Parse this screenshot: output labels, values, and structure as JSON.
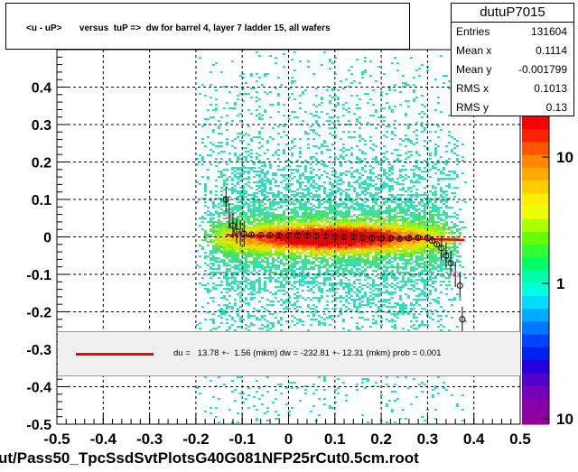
{
  "plot_title": "<u - uP>       versus  tuP =>  dw for barrel 4, layer 7 ladder 15, all wafers",
  "stats": {
    "name": "dutuP7015",
    "rows": [
      {
        "key": "Entries",
        "value": "131604"
      },
      {
        "key": "Mean x",
        "value": "0.1114"
      },
      {
        "key": "Mean y",
        "value": "-0.001799"
      },
      {
        "key": "RMS x",
        "value": "0.1013"
      },
      {
        "key": "RMS y",
        "value": "0.13"
      }
    ]
  },
  "fit_legend": "du =   13.78 +-  1.56 (mkm) dw = -232.81 +- 12.31 (mkm) prob = 0.001",
  "footer": "ut/Pass50_TpcSsdSvtPlotsG40G081NFP25rCut0.5cm.root",
  "colors": {
    "fit_line": "#ff0000",
    "profile_marker": "#000000",
    "profile_marker_alt": "#ff66ff"
  },
  "chart_data": {
    "type": "heatmap",
    "x_range": [
      -0.5,
      0.5
    ],
    "y_range": [
      -0.5,
      0.5
    ],
    "x_ticks": [
      -0.5,
      -0.4,
      -0.3,
      -0.2,
      -0.1,
      0,
      0.1,
      0.2,
      0.3,
      0.4,
      0.5
    ],
    "x_tick_labels": [
      "-0.5",
      "-0.4",
      "-0.3",
      "-0.2",
      "-0.1",
      "0",
      "0.1",
      "0.2",
      "0.3",
      "0.4",
      "0.5"
    ],
    "y_ticks": [
      -0.5,
      -0.4,
      -0.3,
      -0.2,
      -0.1,
      0,
      0.1,
      0.2,
      0.3,
      0.4
    ],
    "y_tick_labels": [
      "-0.5",
      "-0.4",
      "-0.3",
      "-0.2",
      "-0.1",
      "0",
      "0.1",
      "0.2",
      "0.3",
      "0.4"
    ],
    "grid": true,
    "log_z": true,
    "z_tick_labels": [
      "10",
      "1",
      "10"
    ],
    "density_x_range": [
      -0.2,
      0.38
    ],
    "fit_line": {
      "x": [
        -0.135,
        0.38
      ],
      "y": [
        0.005,
        -0.008
      ]
    },
    "profile": {
      "x": [
        -0.135,
        -0.128,
        -0.12,
        -0.112,
        -0.104,
        -0.096,
        -0.08,
        -0.06,
        -0.04,
        -0.02,
        0,
        0.02,
        0.04,
        0.06,
        0.08,
        0.1,
        0.12,
        0.14,
        0.16,
        0.18,
        0.2,
        0.22,
        0.24,
        0.26,
        0.28,
        0.3,
        0.31,
        0.32,
        0.33,
        0.34,
        0.35,
        0.36,
        0.37,
        0.375
      ],
      "y": [
        0.1,
        0.055,
        0.03,
        0.015,
        0.01,
        0.008,
        0.006,
        0.005,
        0.005,
        0.004,
        0.004,
        0.003,
        0.003,
        0.002,
        0.002,
        0.001,
        0.0,
        0.0,
        -0.002,
        -0.003,
        -0.004,
        -0.004,
        -0.005,
        -0.003,
        -0.002,
        -0.003,
        -0.01,
        -0.02,
        -0.03,
        -0.05,
        -0.07,
        -0.1,
        -0.13,
        -0.22
      ]
    }
  }
}
